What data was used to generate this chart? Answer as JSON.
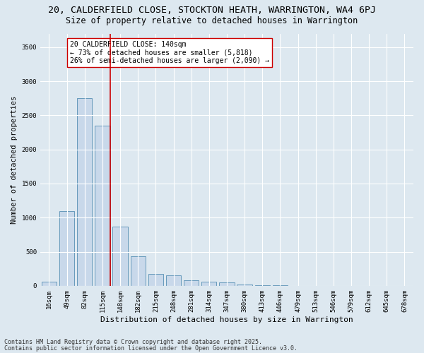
{
  "title1": "20, CALDERFIELD CLOSE, STOCKTON HEATH, WARRINGTON, WA4 6PJ",
  "title2": "Size of property relative to detached houses in Warrington",
  "xlabel": "Distribution of detached houses by size in Warrington",
  "ylabel": "Number of detached properties",
  "categories": [
    "16sqm",
    "49sqm",
    "82sqm",
    "115sqm",
    "148sqm",
    "182sqm",
    "215sqm",
    "248sqm",
    "281sqm",
    "314sqm",
    "347sqm",
    "380sqm",
    "413sqm",
    "446sqm",
    "479sqm",
    "513sqm",
    "546sqm",
    "579sqm",
    "612sqm",
    "645sqm",
    "678sqm"
  ],
  "values": [
    60,
    1100,
    2750,
    2350,
    870,
    430,
    170,
    155,
    80,
    65,
    45,
    15,
    10,
    5,
    3,
    2,
    1,
    0,
    0,
    0,
    0
  ],
  "bar_color": "#c8d8ea",
  "bar_edge_color": "#6699bb",
  "vline_color": "#cc0000",
  "vline_pos": 3.45,
  "annotation_text": "20 CALDERFIELD CLOSE: 140sqm\n← 73% of detached houses are smaller (5,818)\n26% of semi-detached houses are larger (2,090) →",
  "annotation_box_color": "#ffffff",
  "annotation_box_edge": "#cc0000",
  "ylim": [
    0,
    3700
  ],
  "yticks": [
    0,
    500,
    1000,
    1500,
    2000,
    2500,
    3000,
    3500
  ],
  "bg_color": "#dde8f0",
  "plot_bg_color": "#dde8f0",
  "grid_color": "#ffffff",
  "footer1": "Contains HM Land Registry data © Crown copyright and database right 2025.",
  "footer2": "Contains public sector information licensed under the Open Government Licence v3.0.",
  "title1_fontsize": 9.5,
  "title2_fontsize": 8.5,
  "xlabel_fontsize": 8,
  "ylabel_fontsize": 7.5,
  "tick_fontsize": 6.5,
  "annot_fontsize": 7,
  "footer_fontsize": 6
}
